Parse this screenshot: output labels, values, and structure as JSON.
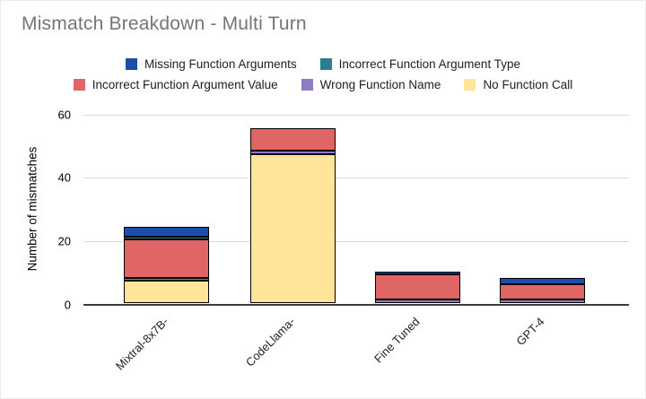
{
  "title": "Mismatch Breakdown - Multi Turn",
  "colors": {
    "title_text": "#757575",
    "legend_text": "#212121",
    "gridline": "#d9d9d9",
    "axis_line": "#3c3c3c",
    "segment_border": "#000000",
    "missing_function_arguments": "#1c4da8",
    "incorrect_function_argument_type": "#2b7e8c",
    "incorrect_function_argument_value": "#e06666",
    "wrong_function_name": "#8e7cc3",
    "no_function_call": "#ffe599"
  },
  "chart_data": {
    "type": "bar",
    "stacked": true,
    "title": "Mismatch Breakdown - Multi Turn",
    "xlabel": "",
    "ylabel": "Number of mismatches",
    "ylim": [
      0,
      60
    ],
    "yticks": [
      0,
      20,
      40,
      60
    ],
    "grid": true,
    "legend_position": "top",
    "legend_rows": [
      [
        0,
        1
      ],
      [
        2,
        3,
        4
      ]
    ],
    "categories": [
      "Mixtral-8x7B-",
      "CodeLlama-",
      "Fine Tuned",
      "GPT-4"
    ],
    "series": [
      {
        "name": "Missing Function Arguments",
        "color": "#1c4da8",
        "values": [
          3,
          0,
          1,
          2
        ]
      },
      {
        "name": "Incorrect Function Argument Type",
        "color": "#2b7e8c",
        "values": [
          1,
          0,
          0,
          0
        ]
      },
      {
        "name": "Incorrect Function Argument Value",
        "color": "#e06666",
        "values": [
          12,
          7,
          8,
          5
        ]
      },
      {
        "name": "Wrong Function Name",
        "color": "#8e7cc3",
        "values": [
          1,
          1,
          1,
          1
        ]
      },
      {
        "name": "No Function Call",
        "color": "#ffe599",
        "values": [
          7,
          47,
          0,
          0
        ]
      }
    ],
    "totals": [
      24,
      55,
      10,
      8
    ]
  }
}
